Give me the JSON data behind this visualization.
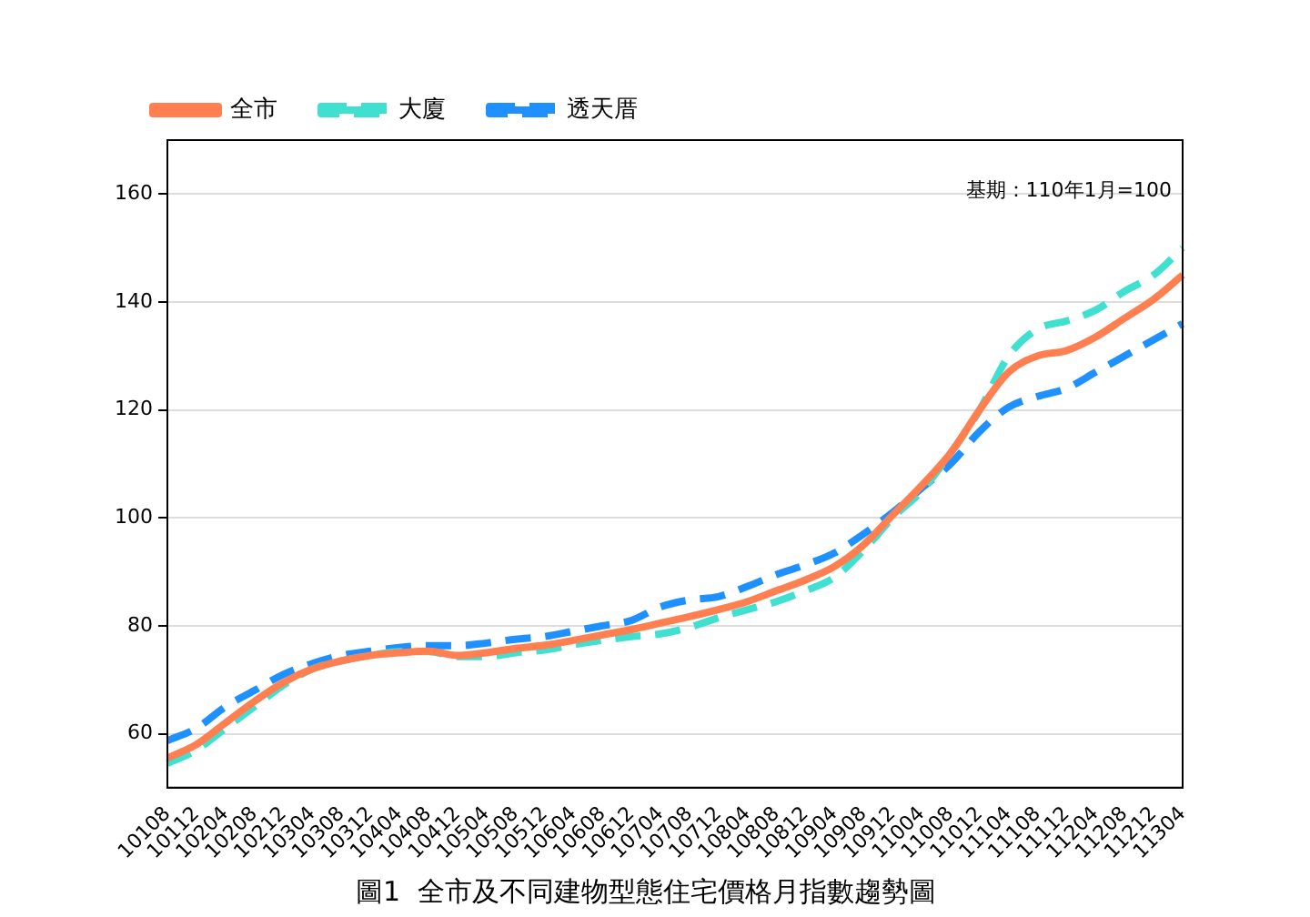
{
  "chart_data": {
    "type": "line",
    "title": "圖1  全市及不同建物型態住宅價格月指數趨勢圖",
    "categories": [
      "10108",
      "10112",
      "10204",
      "10208",
      "10212",
      "10304",
      "10308",
      "10312",
      "10404",
      "10408",
      "10412",
      "10504",
      "10508",
      "10512",
      "10604",
      "10608",
      "10612",
      "10704",
      "10708",
      "10712",
      "10804",
      "10808",
      "10812",
      "10904",
      "10908",
      "10912",
      "11004",
      "11008",
      "11012",
      "11104",
      "11108",
      "11112",
      "11204",
      "11208",
      "11212",
      "11304"
    ],
    "series": [
      {
        "name": "全市",
        "color": "#ff7f50",
        "line_style": "solid",
        "values": [
          55.5,
          58,
          62,
          66,
          69.5,
          72,
          73.5,
          74.5,
          75,
          75.3,
          74.5,
          75,
          75.8,
          76.4,
          77.3,
          78.3,
          79.3,
          80.5,
          81.7,
          83,
          84.5,
          86.5,
          88.5,
          91,
          95,
          100.5,
          106,
          112,
          120,
          127,
          130,
          131,
          133.5,
          137,
          140.5,
          145
        ]
      },
      {
        "name": "大廈",
        "color": "#40e0d0",
        "line_style": "dashed",
        "values": [
          54.5,
          57,
          61,
          65,
          69,
          72,
          73.5,
          74.5,
          75.2,
          75.2,
          74.3,
          74.3,
          75,
          75.5,
          76.5,
          77.3,
          78,
          78.5,
          79.7,
          81.5,
          83,
          84.5,
          86.5,
          89,
          94,
          100,
          105,
          112,
          120,
          130,
          135,
          136.5,
          138.5,
          142,
          145,
          150
        ]
      },
      {
        "name": "透天厝",
        "color": "#1e90ff",
        "line_style": "dashed",
        "values": [
          58.7,
          61,
          65,
          68,
          71,
          73,
          74.5,
          75.3,
          76,
          76.3,
          76.3,
          76.8,
          77.5,
          78,
          79,
          80,
          81,
          83.5,
          84.8,
          85.4,
          87.3,
          89.5,
          91.3,
          93.5,
          97,
          101,
          105.5,
          110,
          116,
          120.5,
          122.5,
          124,
          127,
          130,
          133,
          136
        ]
      }
    ],
    "ylim": [
      50,
      170
    ],
    "yticks": [
      60,
      80,
      100,
      120,
      140,
      160
    ],
    "grid": "y",
    "legend": "top left",
    "marker": "none",
    "annotations": [
      "基期：110年1月=100"
    ]
  }
}
